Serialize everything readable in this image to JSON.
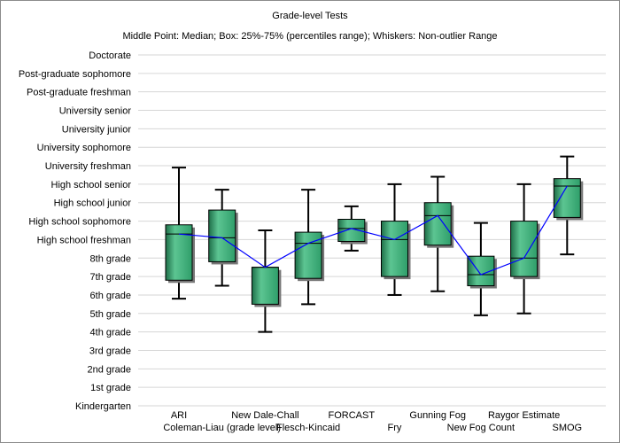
{
  "chart_data": {
    "type": "boxplot",
    "title": "Grade-level Tests",
    "subtitle": "Middle Point: Median; Box: 25%-75% (percentiles range); Whiskers: Non-outlier Range",
    "y_levels": [
      "Kindergarten",
      "1st grade",
      "2nd grade",
      "3rd grade",
      "4th grade",
      "5th grade",
      "6th grade",
      "7th grade",
      "8th grade",
      "High school freshman",
      "High school sophomore",
      "High school junior",
      "High school senior",
      "University freshman",
      "University sophomore",
      "University junior",
      "University senior",
      "Post-graduate freshman",
      "Post-graduate sophomore",
      "Doctorate"
    ],
    "ylim": [
      0,
      19
    ],
    "grid": true,
    "categories": [
      "ARI",
      "Coleman-Liau (grade level)",
      "New Dale-Chall",
      "Flesch-Kincaid",
      "FORCAST",
      "Fry",
      "Gunning Fog",
      "New Fog Count",
      "Raygor Estimate",
      "SMOG"
    ],
    "boxes": [
      {
        "label": "ARI",
        "min": 5.8,
        "q1": 6.8,
        "median": 9.3,
        "q3": 9.8,
        "max": 12.9
      },
      {
        "label": "Coleman-Liau (grade level)",
        "min": 6.5,
        "q1": 7.8,
        "median": 9.1,
        "q3": 10.6,
        "max": 11.7
      },
      {
        "label": "New Dale-Chall",
        "min": 4.0,
        "q1": 5.5,
        "median": 7.5,
        "q3": 7.5,
        "max": 9.5
      },
      {
        "label": "Flesch-Kincaid",
        "min": 5.5,
        "q1": 6.9,
        "median": 8.8,
        "q3": 9.4,
        "max": 11.7
      },
      {
        "label": "FORCAST",
        "min": 8.4,
        "q1": 8.9,
        "median": 9.6,
        "q3": 10.1,
        "max": 10.8
      },
      {
        "label": "Fry",
        "min": 6.0,
        "q1": 7.0,
        "median": 9.0,
        "q3": 10.0,
        "max": 12.0
      },
      {
        "label": "Gunning Fog",
        "min": 6.2,
        "q1": 8.7,
        "median": 10.3,
        "q3": 11.0,
        "max": 12.4
      },
      {
        "label": "New Fog Count",
        "min": 4.9,
        "q1": 6.5,
        "median": 7.1,
        "q3": 8.1,
        "max": 9.9
      },
      {
        "label": "Raygor Estimate",
        "min": 5.0,
        "q1": 7.0,
        "median": 8.0,
        "q3": 10.0,
        "max": 12.0
      },
      {
        "label": "SMOG",
        "min": 8.2,
        "q1": 10.2,
        "median": 11.9,
        "q3": 12.3,
        "max": 13.5
      }
    ],
    "median_line": true,
    "colors": {
      "box_fill": "#2f9e6a",
      "box_highlight": "#5cc592",
      "box_shadow": "#1e6e48",
      "median_line": "#0000ff",
      "grid": "#d6d6d6",
      "whisker": "#000000"
    }
  }
}
